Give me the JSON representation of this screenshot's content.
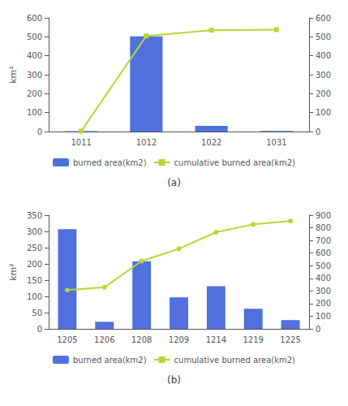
{
  "chart_data": [
    {
      "type": "bar",
      "subtitle": "(a)",
      "ylabel": "km²",
      "categories": [
        "1011",
        "1012",
        "1022",
        "1031"
      ],
      "series": [
        {
          "name": "burned area(km2)",
          "type": "bar",
          "values": [
            2,
            503,
            30,
            3
          ]
        },
        {
          "name": "cumulative burned area(km2)",
          "type": "line",
          "axis": "y2",
          "marker": "square",
          "values": [
            2,
            505,
            535,
            538
          ]
        }
      ],
      "ylim": [
        0,
        600
      ],
      "yticks": [
        0,
        100,
        200,
        300,
        400,
        500,
        600
      ],
      "y2lim": [
        0,
        600
      ],
      "y2ticks": [
        0,
        100,
        200,
        300,
        400,
        500,
        600
      ],
      "grid": false,
      "legend": "bottom"
    },
    {
      "type": "bar",
      "subtitle": "(b)",
      "ylabel": "km²",
      "categories": [
        "1205",
        "1206",
        "1208",
        "1209",
        "1214",
        "1219",
        "1225"
      ],
      "series": [
        {
          "name": "burned area(km2)",
          "type": "bar",
          "values": [
            307,
            22,
            208,
            97,
            131,
            62,
            27
          ]
        },
        {
          "name": "cumulative burned area(km2)",
          "type": "line",
          "axis": "y2",
          "marker": "circle",
          "values": [
            307,
            329,
            537,
            634,
            765,
            827,
            854
          ]
        }
      ],
      "ylim": [
        0,
        350
      ],
      "yticks": [
        0,
        50,
        100,
        150,
        200,
        250,
        300,
        350
      ],
      "y2lim": [
        0,
        900
      ],
      "y2ticks": [
        0,
        100,
        200,
        300,
        400,
        500,
        600,
        700,
        800,
        900
      ],
      "grid": false,
      "legend": "bottom"
    }
  ]
}
